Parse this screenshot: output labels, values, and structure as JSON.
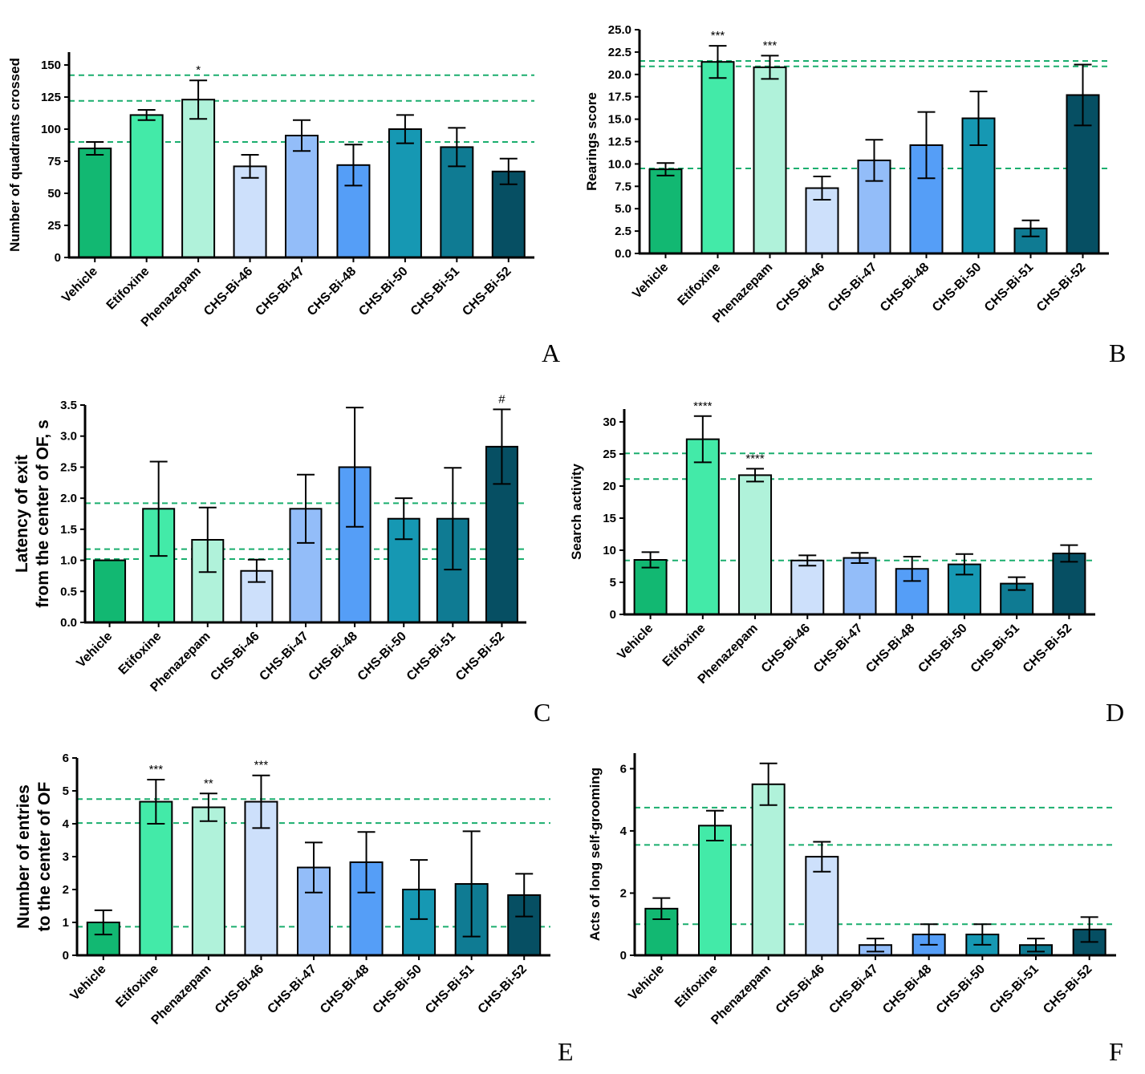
{
  "categories": [
    "Vehicle",
    "Etifoxine",
    "Phenazepam",
    "CHS-Bi-46",
    "CHS-Bi-47",
    "CHS-Bi-48",
    "CHS-Bi-50",
    "CHS-Bi-51",
    "CHS-Bi-52"
  ],
  "bar_colors": [
    "#12b872",
    "#43eaa8",
    "#b0f2da",
    "#cde0fb",
    "#93bdf9",
    "#559ef7",
    "#1698b3",
    "#0f7b93",
    "#064f63"
  ],
  "reference_line_color": "#1aae6e",
  "chart_data": [
    {
      "panel": "A",
      "type": "bar",
      "ylabel": "Number of quadrants crossed",
      "ylim": [
        0,
        160
      ],
      "yticks": [
        0,
        25,
        50,
        75,
        100,
        125,
        150
      ],
      "values": [
        85,
        111,
        123,
        71,
        95,
        72,
        100,
        86,
        67
      ],
      "errors": [
        5,
        4,
        15,
        9,
        12,
        16,
        11,
        15,
        10
      ],
      "significance": [
        "",
        "",
        "*",
        "",
        "",
        "",
        "",
        "",
        ""
      ],
      "reference_lines": [
        90,
        122,
        142
      ]
    },
    {
      "panel": "B",
      "type": "bar",
      "ylabel": "Rearings score",
      "ylim": [
        0,
        25
      ],
      "yticks": [
        "0.0",
        "2.5",
        "5.0",
        "7.5",
        "10.0",
        "12.5",
        "15.0",
        "17.5",
        "20.0",
        "22.5",
        "25.0"
      ],
      "values": [
        9.4,
        21.4,
        20.8,
        7.3,
        10.4,
        12.1,
        15.1,
        2.8,
        17.7
      ],
      "errors": [
        0.7,
        1.8,
        1.3,
        1.3,
        2.3,
        3.7,
        3.0,
        0.9,
        3.4
      ],
      "significance": [
        "",
        "***",
        "***",
        "",
        "",
        "",
        "",
        "",
        ""
      ],
      "reference_lines": [
        9.5,
        20.9,
        21.5
      ]
    },
    {
      "panel": "C",
      "type": "bar",
      "ylabel_lines": [
        "Latency of exit",
        "from the center of OF, s"
      ],
      "ylim": [
        0,
        3.5
      ],
      "yticks": [
        "0.0",
        "0.5",
        "1.0",
        "1.5",
        "2.0",
        "2.5",
        "3.0",
        "3.5"
      ],
      "values": [
        1.0,
        1.83,
        1.33,
        0.83,
        1.83,
        2.5,
        1.67,
        1.67,
        2.83
      ],
      "errors": [
        0,
        0.76,
        0.52,
        0.18,
        0.55,
        0.96,
        0.33,
        0.82,
        0.6
      ],
      "significance": [
        "",
        "",
        "",
        "",
        "",
        "",
        "",
        "",
        "#"
      ],
      "reference_lines": [
        1.02,
        1.18,
        1.92
      ]
    },
    {
      "panel": "D",
      "type": "bar",
      "ylabel": "Search activity",
      "ylim": [
        0,
        32
      ],
      "yticks": [
        0,
        5,
        10,
        15,
        20,
        25,
        30
      ],
      "values": [
        8.5,
        27.3,
        21.7,
        8.4,
        8.8,
        7.1,
        7.8,
        4.8,
        9.5
      ],
      "errors": [
        1.2,
        3.6,
        1.0,
        0.8,
        0.8,
        1.9,
        1.6,
        1.0,
        1.3
      ],
      "significance": [
        "",
        "****",
        "****",
        "",
        "",
        "",
        "",
        "",
        ""
      ],
      "reference_lines": [
        8.4,
        21.1,
        25.1
      ]
    },
    {
      "panel": "E",
      "type": "bar",
      "ylabel_lines": [
        "Number of entries",
        "to the center of OF"
      ],
      "ylim": [
        0,
        6
      ],
      "yticks": [
        0,
        1,
        2,
        3,
        4,
        5,
        6
      ],
      "values": [
        1.0,
        4.67,
        4.5,
        4.67,
        2.67,
        2.83,
        2.0,
        2.17,
        1.83
      ],
      "errors": [
        0.37,
        0.67,
        0.42,
        0.8,
        0.76,
        0.92,
        0.9,
        1.6,
        0.65
      ],
      "significance": [
        "",
        "***",
        "**",
        "***",
        "",
        "",
        "",
        "",
        ""
      ],
      "reference_lines": [
        0.87,
        4.02,
        4.75
      ]
    },
    {
      "panel": "F",
      "type": "bar",
      "ylabel": "Acts of long self-grooming",
      "ylim": [
        0,
        6.5
      ],
      "yticks": [
        0,
        2,
        4,
        6
      ],
      "values": [
        1.5,
        4.17,
        5.5,
        3.17,
        0.33,
        0.67,
        0.67,
        0.33,
        0.83
      ],
      "errors": [
        0.34,
        0.48,
        0.67,
        0.48,
        0.21,
        0.33,
        0.33,
        0.21,
        0.4
      ],
      "significance": [
        "",
        "",
        "",
        "",
        "",
        "",
        "",
        "",
        ""
      ],
      "reference_lines": [
        1.0,
        3.55,
        4.75
      ]
    }
  ],
  "panel_letters": [
    "A",
    "B",
    "C",
    "D",
    "E",
    "F"
  ]
}
